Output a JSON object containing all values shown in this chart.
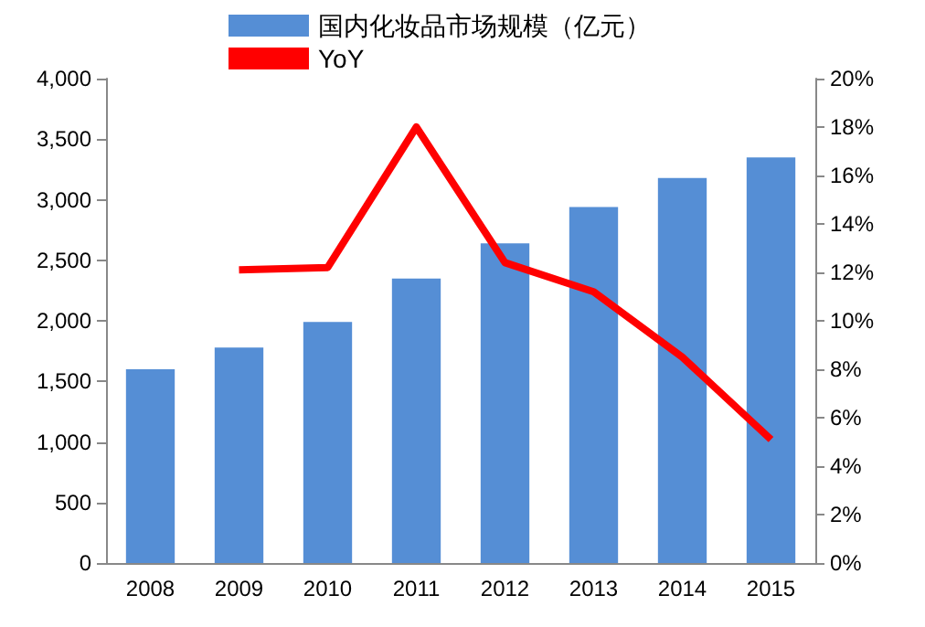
{
  "chart_data": {
    "type": "bar",
    "categories": [
      "2008",
      "2009",
      "2010",
      "2011",
      "2012",
      "2013",
      "2014",
      "2015"
    ],
    "series": [
      {
        "name": "国内化妆品市场规模（亿元）",
        "color": "#558ed5",
        "values": [
          1600,
          1780,
          1990,
          2350,
          2640,
          2940,
          3180,
          3350
        ]
      },
      {
        "name": "YoY",
        "type": "line",
        "axis": "y2",
        "color": "#ff0000",
        "values": [
          null,
          12.1,
          12.2,
          18.0,
          12.4,
          11.2,
          8.5,
          5.1
        ]
      }
    ],
    "ylim": [
      0,
      4000
    ],
    "yticks": [
      {
        "value": 0,
        "label": "0"
      },
      {
        "value": 500,
        "label": "500"
      },
      {
        "value": 1000,
        "label": "1,000"
      },
      {
        "value": 1500,
        "label": "1,500"
      },
      {
        "value": 2000,
        "label": "2,000"
      },
      {
        "value": 2500,
        "label": "2,500"
      },
      {
        "value": 3000,
        "label": "3,000"
      },
      {
        "value": 3500,
        "label": "3,500"
      },
      {
        "value": 4000,
        "label": "4,000"
      }
    ],
    "y2lim": [
      0,
      20
    ],
    "y2ticks": [
      {
        "value": 0,
        "label": "0%"
      },
      {
        "value": 2,
        "label": "2%"
      },
      {
        "value": 4,
        "label": "4%"
      },
      {
        "value": 6,
        "label": "6%"
      },
      {
        "value": 8,
        "label": "8%"
      },
      {
        "value": 10,
        "label": "10%"
      },
      {
        "value": 12,
        "label": "12%"
      },
      {
        "value": 14,
        "label": "14%"
      },
      {
        "value": 16,
        "label": "16%"
      },
      {
        "value": 18,
        "label": "18%"
      },
      {
        "value": 20,
        "label": "20%"
      }
    ],
    "legend": "top",
    "grid": false,
    "marker": "none"
  }
}
